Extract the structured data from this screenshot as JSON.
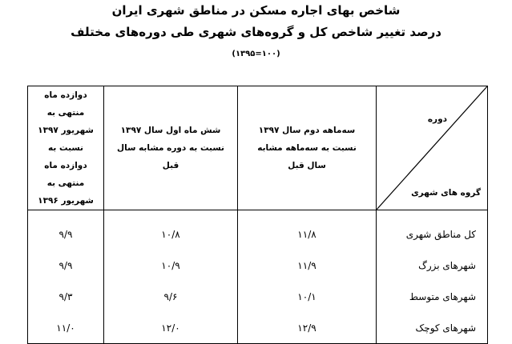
{
  "title": {
    "line1": "شاخص بهای اجاره مسکن در مناطق شهری ایران",
    "line2": "درصد تغییر شاخص کل و گروه‌های شهری طی دوره‌های مختلف",
    "line3": "(۱۰۰=۱۳۹۵)"
  },
  "table": {
    "corner": {
      "top": "دوره",
      "bottom": "گروه های شهری"
    },
    "headers": [
      "سه‌ماهه دوم سال ۱۳۹۷ نسبت به سه‌ماهه مشابه سال قبل",
      "شش ماه اول سال ۱۳۹۷ نسبت به دوره مشابه سال قبل",
      "دوازده ماه منتهی به شهریور ۱۳۹۷ نسبت به دوازده ماه منتهی به شهریور ۱۳۹۶"
    ],
    "rows": [
      {
        "label": "کل مناطق شهری",
        "values": [
          "۱۱/۸",
          "۱۰/۸",
          "۹/۹"
        ]
      },
      {
        "label": "شهرهای بزرگ",
        "values": [
          "۱۱/۹",
          "۱۰/۹",
          "۹/۹"
        ]
      },
      {
        "label": "شهرهای متوسط",
        "values": [
          "۱۰/۱",
          "۹/۶",
          "۹/۳"
        ]
      },
      {
        "label": "شهرهای کوچک",
        "values": [
          "۱۲/۹",
          "۱۲/۰",
          "۱۱/۰"
        ]
      }
    ]
  }
}
